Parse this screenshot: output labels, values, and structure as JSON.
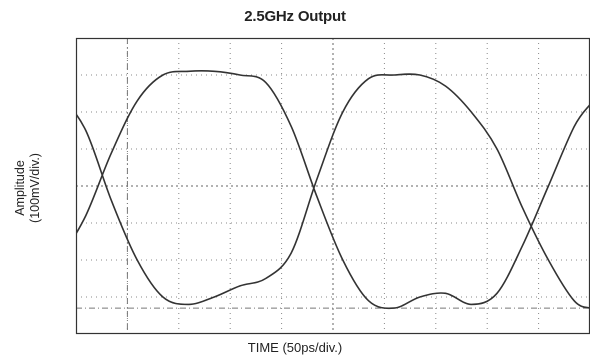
{
  "chart_data": {
    "type": "line",
    "title": "2.5GHz Output",
    "xlabel": "TIME (50ps/div.)",
    "ylabel": [
      "Amplitude",
      "(100mV/div.)"
    ],
    "x_divisions": 10,
    "y_divisions": 8,
    "xlim": [
      0,
      10
    ],
    "ylim": [
      -4,
      4
    ],
    "grid": true,
    "series": [
      {
        "x": [
          -0.31,
          0.19,
          0.69,
          1.19,
          1.69,
          2.19,
          2.69,
          3.19,
          3.69,
          4.19,
          4.69,
          5.19,
          5.69,
          6.19,
          6.69,
          7.19,
          7.69,
          8.19,
          8.69,
          9.19,
          9.69,
          10.0
        ],
        "y": [
          -2.0,
          -0.8,
          0.9,
          2.3,
          3.0,
          3.1,
          3.1,
          3.0,
          2.8,
          1.6,
          -0.3,
          -2.0,
          -3.1,
          -3.3,
          -3.0,
          -2.9,
          -3.2,
          -2.9,
          -1.6,
          0.0,
          1.6,
          2.2
        ]
      },
      {
        "x": [
          -0.31,
          0.19,
          0.69,
          1.19,
          1.69,
          2.19,
          2.69,
          3.19,
          3.69,
          4.19,
          4.69,
          5.19,
          5.69,
          6.19,
          6.69,
          7.19,
          7.69,
          8.19,
          8.69,
          9.19,
          9.69,
          10.0
        ],
        "y": [
          2.5,
          1.5,
          -0.4,
          -2.0,
          -3.0,
          -3.2,
          -3.0,
          -2.7,
          -2.5,
          -1.8,
          0.2,
          2.0,
          2.9,
          3.0,
          3.0,
          2.7,
          2.0,
          1.0,
          -0.6,
          -2.0,
          -3.1,
          -3.3
        ]
      }
    ],
    "markers": [
      {
        "axis": "x",
        "value": 1.0
      },
      {
        "axis": "y",
        "value": -3.3
      }
    ]
  }
}
